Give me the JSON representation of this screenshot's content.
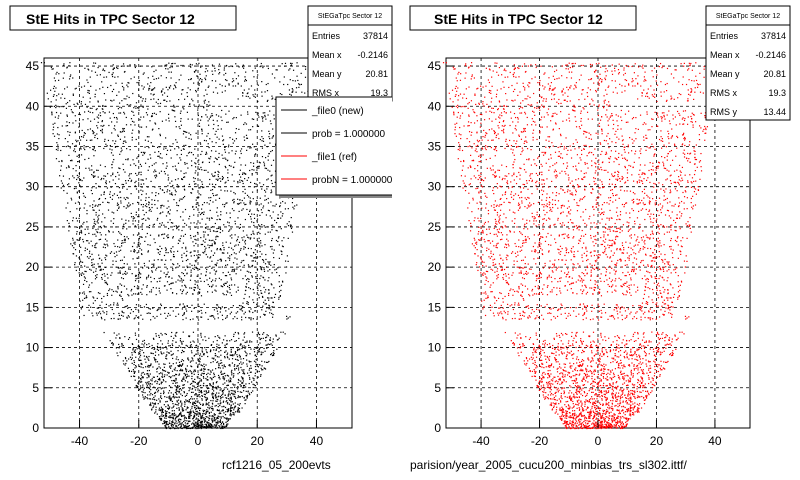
{
  "panels": [
    {
      "title": "StE Hits in TPC Sector 12",
      "stats": {
        "name": "StEGaTpc Sector 12",
        "rows": [
          {
            "label": "Entries",
            "value": "37814"
          },
          {
            "label": "Mean x",
            "value": "-0.2146"
          },
          {
            "label": "Mean y",
            "value": "20.81"
          },
          {
            "label": "RMS x",
            "value": "19.3"
          }
        ]
      },
      "legend": [
        {
          "label": "_file0 (new)",
          "color": "#000000"
        },
        {
          "label": "prob = 1.000000",
          "color": "#000000"
        },
        {
          "label": "_file1 (ref)",
          "color": "#ff0000"
        },
        {
          "label": "probN = 1.000000",
          "color": "#ff0000"
        }
      ],
      "footer": "rcf1216_05_200evts",
      "color": "#000000"
    },
    {
      "title": "StE Hits in TPC Sector 12",
      "stats": {
        "name": "StEGaTpc Sector 12",
        "rows": [
          {
            "label": "Entries",
            "value": "37814"
          },
          {
            "label": "Mean x",
            "value": "-0.2146"
          },
          {
            "label": "Mean y",
            "value": "20.81"
          },
          {
            "label": "RMS x",
            "value": "19.3"
          },
          {
            "label": "RMS y",
            "value": "13.44"
          }
        ]
      },
      "footer": "parision/year_2005_cucu200_minbias_trs_sl302.ittf/",
      "color": "#ff0000"
    }
  ],
  "chart_data": [
    {
      "type": "scatter",
      "title": "StE Hits in TPC Sector 12",
      "xlim": [
        -52,
        52
      ],
      "ylim": [
        0,
        46
      ],
      "xticks": [
        -40,
        -20,
        0,
        20,
        40
      ],
      "yticks": [
        0,
        5,
        10,
        15,
        20,
        25,
        30,
        35,
        40,
        45
      ],
      "grid": true,
      "series": [
        {
          "name": "_file0 (new)",
          "color": "#000000"
        }
      ],
      "legend_position": "top-right",
      "entries": 37814,
      "mean_x": -0.2146,
      "mean_y": 20.81,
      "rms_x": 19.3
    },
    {
      "type": "scatter",
      "title": "StE Hits in TPC Sector 12",
      "xlim": [
        -52,
        52
      ],
      "ylim": [
        0,
        46
      ],
      "xticks": [
        -40,
        -20,
        0,
        20,
        40
      ],
      "yticks": [
        0,
        5,
        10,
        15,
        20,
        25,
        30,
        35,
        40,
        45
      ],
      "grid": true,
      "series": [
        {
          "name": "_file1 (ref)",
          "color": "#ff0000"
        }
      ],
      "entries": 37814,
      "mean_x": -0.2146,
      "mean_y": 20.81,
      "rms_x": 19.3,
      "rms_y": 13.44
    }
  ]
}
